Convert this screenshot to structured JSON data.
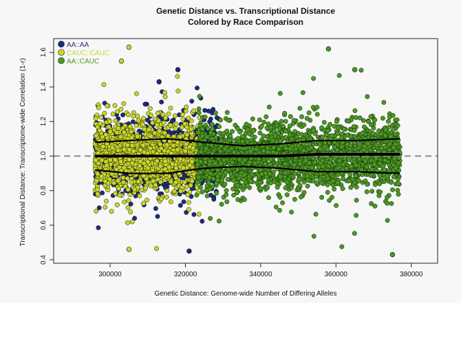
{
  "chart_data": {
    "type": "scatter",
    "title": "Genetic Distance vs. Transcriptional Distance",
    "subtitle": "Colored by Race Comparison",
    "xlabel": "Genetic Distance: Genome-wide Number of Differing Alleles",
    "ylabel": "Transcriptional Distance: Transcriptome-wide Correlation (1-r)",
    "xlim": [
      285000,
      387000
    ],
    "ylim": [
      0.38,
      1.68
    ],
    "xticks": [
      300000,
      320000,
      340000,
      360000,
      380000
    ],
    "yticks": [
      0.4,
      0.6,
      0.8,
      1.0,
      1.2,
      1.4,
      1.6
    ],
    "xtick_labels": [
      "300000",
      "320000",
      "340000",
      "360000",
      "380000"
    ],
    "ytick_labels": [
      "0.4",
      "0.6",
      "0.8",
      "1.0",
      "1.2",
      "1.4",
      "1.6"
    ],
    "legend_position": "top-left",
    "grid": false,
    "reference_line": {
      "y": 1.0,
      "style": "dashed",
      "color": "#888888"
    },
    "series": [
      {
        "name": "AA::AA",
        "color": "#1d2c7a",
        "x_range": [
          296000,
          329000
        ],
        "y_median": 1.0,
        "y_spread": 0.09,
        "extremes": [
          [
            318000,
            1.5
          ],
          [
            321000,
            0.45
          ],
          [
            313000,
            1.43
          ]
        ]
      },
      {
        "name": "CAUC::CAUC",
        "color": "#c8d62a",
        "x_range": [
          296000,
          324000
        ],
        "y_median": 1.0,
        "y_spread": 0.1,
        "extremes": [
          [
            305000,
            1.63
          ],
          [
            305000,
            0.46
          ],
          [
            303000,
            1.55
          ]
        ]
      },
      {
        "name": "AA::CAUC",
        "color": "#4a9a1f",
        "x_range": [
          323000,
          377000
        ],
        "y_median": 1.0,
        "y_spread": 0.09,
        "extremes": [
          [
            358000,
            1.62
          ],
          [
            375000,
            0.43
          ],
          [
            365000,
            1.5
          ]
        ]
      }
    ],
    "trend_lines": {
      "x": [
        296000,
        305000,
        315000,
        325000,
        335000,
        345000,
        355000,
        365000,
        377000
      ],
      "upper": [
        1.08,
        1.09,
        1.1,
        1.08,
        1.06,
        1.07,
        1.09,
        1.09,
        1.1
      ],
      "median": [
        1.0,
        1.0,
        1.0,
        1.0,
        1.0,
        1.0,
        1.01,
        1.01,
        1.01
      ],
      "lower": [
        0.92,
        0.9,
        0.9,
        0.93,
        0.94,
        0.93,
        0.91,
        0.91,
        0.9
      ]
    }
  }
}
